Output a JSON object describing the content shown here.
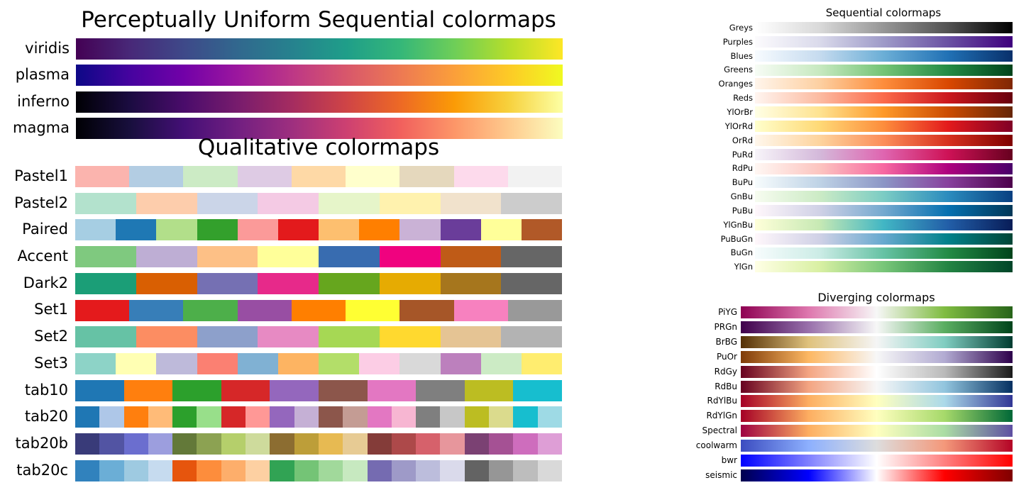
{
  "perceptual": {
    "title": "Perceptually Uniform Sequential colormaps",
    "maps": [
      {
        "name": "viridis",
        "stops": [
          "#440154",
          "#482878",
          "#3e4989",
          "#31688e",
          "#26828e",
          "#1f9e89",
          "#35b779",
          "#6ece58",
          "#b5de2b",
          "#fde725"
        ]
      },
      {
        "name": "plasma",
        "stops": [
          "#0d0887",
          "#46039f",
          "#7201a8",
          "#9c179e",
          "#bd3786",
          "#d8576b",
          "#ed7953",
          "#fb9f3a",
          "#fdca26",
          "#f0f921"
        ]
      },
      {
        "name": "inferno",
        "stops": [
          "#000004",
          "#1b0c41",
          "#4a0c6b",
          "#781c6d",
          "#a52c60",
          "#cf4446",
          "#ed6925",
          "#fb9b06",
          "#f7d13d",
          "#fcffa4"
        ]
      },
      {
        "name": "magma",
        "stops": [
          "#000004",
          "#180f3d",
          "#440f76",
          "#721f81",
          "#9e2f7f",
          "#cd4071",
          "#f1605d",
          "#fd9668",
          "#feca8d",
          "#fcfdbf"
        ]
      }
    ]
  },
  "qualitative": {
    "title": "Qualitative colormaps",
    "maps": [
      {
        "name": "Pastel1",
        "colors": [
          "#fbb4ae",
          "#b3cde3",
          "#ccebc5",
          "#decbe4",
          "#fed9a6",
          "#ffffcc",
          "#e5d8bd",
          "#fddaec",
          "#f2f2f2"
        ]
      },
      {
        "name": "Pastel2",
        "colors": [
          "#b3e2cd",
          "#fdcdac",
          "#cbd5e8",
          "#f4cae4",
          "#e6f5c9",
          "#fff2ae",
          "#f1e2cc",
          "#cccccc"
        ]
      },
      {
        "name": "Paired",
        "colors": [
          "#a6cee3",
          "#1f78b4",
          "#b2df8a",
          "#33a02c",
          "#fb9a99",
          "#e31a1c",
          "#fdbf6f",
          "#ff7f00",
          "#cab2d6",
          "#6a3d9a",
          "#ffff99",
          "#b15928"
        ]
      },
      {
        "name": "Accent",
        "colors": [
          "#7fc97f",
          "#beaed4",
          "#fdc086",
          "#ffff99",
          "#386cb0",
          "#f0027f",
          "#bf5b17",
          "#666666"
        ]
      },
      {
        "name": "Dark2",
        "colors": [
          "#1b9e77",
          "#d95f02",
          "#7570b3",
          "#e7298a",
          "#66a61e",
          "#e6ab02",
          "#a6761d",
          "#666666"
        ]
      },
      {
        "name": "Set1",
        "colors": [
          "#e41a1c",
          "#377eb8",
          "#4daf4a",
          "#984ea3",
          "#ff7f00",
          "#ffff33",
          "#a65628",
          "#f781bf",
          "#999999"
        ]
      },
      {
        "name": "Set2",
        "colors": [
          "#66c2a5",
          "#fc8d62",
          "#8da0cb",
          "#e78ac3",
          "#a6d854",
          "#ffd92f",
          "#e5c494",
          "#b3b3b3"
        ]
      },
      {
        "name": "Set3",
        "colors": [
          "#8dd3c7",
          "#ffffb3",
          "#bebada",
          "#fb8072",
          "#80b1d3",
          "#fdb462",
          "#b3de69",
          "#fccde5",
          "#d9d9d9",
          "#bc80bd",
          "#ccebc5",
          "#ffed6f"
        ]
      },
      {
        "name": "tab10",
        "colors": [
          "#1f77b4",
          "#ff7f0e",
          "#2ca02c",
          "#d62728",
          "#9467bd",
          "#8c564b",
          "#e377c2",
          "#7f7f7f",
          "#bcbd22",
          "#17becf"
        ]
      },
      {
        "name": "tab20",
        "colors": [
          "#1f77b4",
          "#aec7e8",
          "#ff7f0e",
          "#ffbb78",
          "#2ca02c",
          "#98df8a",
          "#d62728",
          "#ff9896",
          "#9467bd",
          "#c5b0d5",
          "#8c564b",
          "#c49c94",
          "#e377c2",
          "#f7b6d2",
          "#7f7f7f",
          "#c7c7c7",
          "#bcbd22",
          "#dbdb8d",
          "#17becf",
          "#9edae5"
        ]
      },
      {
        "name": "tab20b",
        "colors": [
          "#393b79",
          "#5254a3",
          "#6b6ecf",
          "#9c9ede",
          "#637939",
          "#8ca252",
          "#b5cf6b",
          "#cedb9c",
          "#8c6d31",
          "#bd9e39",
          "#e7ba52",
          "#e7cb94",
          "#843c39",
          "#ad494a",
          "#d6616b",
          "#e7969c",
          "#7b4173",
          "#a55194",
          "#ce6dbd",
          "#de9ed6"
        ]
      },
      {
        "name": "tab20c",
        "colors": [
          "#3182bd",
          "#6baed6",
          "#9ecae1",
          "#c6dbef",
          "#e6550d",
          "#fd8d3c",
          "#fdae6b",
          "#fdd0a2",
          "#31a354",
          "#74c476",
          "#a1d99b",
          "#c7e9c0",
          "#756bb1",
          "#9e9ac8",
          "#bcbddc",
          "#dadaeb",
          "#636363",
          "#969696",
          "#bdbdbd",
          "#d9d9d9"
        ]
      }
    ]
  },
  "sequential": {
    "title": "Sequential colormaps",
    "maps": [
      {
        "name": "Greys",
        "stops": [
          "#ffffff",
          "#d9d9d9",
          "#969696",
          "#525252",
          "#000000"
        ]
      },
      {
        "name": "Purples",
        "stops": [
          "#fcfbfd",
          "#dadaeb",
          "#9e9ac8",
          "#6a51a3",
          "#3f007d"
        ]
      },
      {
        "name": "Blues",
        "stops": [
          "#f7fbff",
          "#c6dbef",
          "#6baed6",
          "#2171b5",
          "#08306b"
        ]
      },
      {
        "name": "Greens",
        "stops": [
          "#f7fcf5",
          "#c7e9c0",
          "#74c476",
          "#238b45",
          "#00441b"
        ]
      },
      {
        "name": "Oranges",
        "stops": [
          "#fff5eb",
          "#fdd0a2",
          "#fd8d3c",
          "#d94801",
          "#7f2704"
        ]
      },
      {
        "name": "Reds",
        "stops": [
          "#fff5f0",
          "#fcbba1",
          "#fb6a4a",
          "#cb181d",
          "#67000d"
        ]
      },
      {
        "name": "YlOrBr",
        "stops": [
          "#ffffe5",
          "#fee391",
          "#fe9929",
          "#cc4c02",
          "#662506"
        ]
      },
      {
        "name": "YlOrRd",
        "stops": [
          "#ffffcc",
          "#fed976",
          "#fd8d3c",
          "#e31a1c",
          "#800026"
        ]
      },
      {
        "name": "OrRd",
        "stops": [
          "#fff7ec",
          "#fdd49e",
          "#fc8d59",
          "#d7301f",
          "#7f0000"
        ]
      },
      {
        "name": "PuRd",
        "stops": [
          "#f7f4f9",
          "#d4b9da",
          "#df65b0",
          "#ce1256",
          "#67001f"
        ]
      },
      {
        "name": "RdPu",
        "stops": [
          "#fff7f3",
          "#fcc5c0",
          "#f768a1",
          "#ae017e",
          "#49006a"
        ]
      },
      {
        "name": "BuPu",
        "stops": [
          "#f7fcfd",
          "#bfd3e6",
          "#8c96c6",
          "#88419d",
          "#4d004b"
        ]
      },
      {
        "name": "GnBu",
        "stops": [
          "#f7fcf0",
          "#ccebc5",
          "#7bccc4",
          "#2b8cbe",
          "#084081"
        ]
      },
      {
        "name": "PuBu",
        "stops": [
          "#fff7fb",
          "#d0d1e6",
          "#74a9cf",
          "#0570b0",
          "#023858"
        ]
      },
      {
        "name": "YlGnBu",
        "stops": [
          "#ffffd9",
          "#c7e9b4",
          "#41b6c4",
          "#225ea8",
          "#081d58"
        ]
      },
      {
        "name": "PuBuGn",
        "stops": [
          "#fff7fb",
          "#d0d1e6",
          "#67a9cf",
          "#02818a",
          "#014636"
        ]
      },
      {
        "name": "BuGn",
        "stops": [
          "#f7fcfd",
          "#ccece6",
          "#66c2a4",
          "#238b45",
          "#00441b"
        ]
      },
      {
        "name": "YlGn",
        "stops": [
          "#ffffe5",
          "#d9f0a3",
          "#78c679",
          "#238443",
          "#004529"
        ]
      }
    ]
  },
  "diverging": {
    "title": "Diverging colormaps",
    "maps": [
      {
        "name": "PiYG",
        "stops": [
          "#8e0152",
          "#de77ae",
          "#f7f7f7",
          "#7fbc41",
          "#276419"
        ]
      },
      {
        "name": "PRGn",
        "stops": [
          "#40004b",
          "#9970ab",
          "#f7f7f7",
          "#5aae61",
          "#00441b"
        ]
      },
      {
        "name": "BrBG",
        "stops": [
          "#543005",
          "#dfc27d",
          "#f5f5f5",
          "#80cdc1",
          "#003c30"
        ]
      },
      {
        "name": "PuOr",
        "stops": [
          "#7f3b08",
          "#fdb863",
          "#f7f7f7",
          "#b2abd2",
          "#2d004b"
        ]
      },
      {
        "name": "RdGy",
        "stops": [
          "#67001f",
          "#f4a582",
          "#ffffff",
          "#bababa",
          "#1a1a1a"
        ]
      },
      {
        "name": "RdBu",
        "stops": [
          "#67001f",
          "#f4a582",
          "#f7f7f7",
          "#92c5de",
          "#053061"
        ]
      },
      {
        "name": "RdYlBu",
        "stops": [
          "#a50026",
          "#fdae61",
          "#ffffbf",
          "#abd9e9",
          "#313695"
        ]
      },
      {
        "name": "RdYlGn",
        "stops": [
          "#a50026",
          "#fdae61",
          "#ffffbf",
          "#a6d96a",
          "#006837"
        ]
      },
      {
        "name": "Spectral",
        "stops": [
          "#9e0142",
          "#fdae61",
          "#ffffbf",
          "#abdda4",
          "#5e4fa2"
        ]
      },
      {
        "name": "coolwarm",
        "stops": [
          "#3b4cc0",
          "#8db0fe",
          "#dddddd",
          "#f4987a",
          "#b40426"
        ]
      },
      {
        "name": "bwr",
        "stops": [
          "#0000ff",
          "#8080ff",
          "#ffffff",
          "#ff8080",
          "#ff0000"
        ]
      },
      {
        "name": "seismic",
        "stops": [
          "#00004d",
          "#0000ff",
          "#ffffff",
          "#ff0000",
          "#800000"
        ]
      }
    ]
  }
}
